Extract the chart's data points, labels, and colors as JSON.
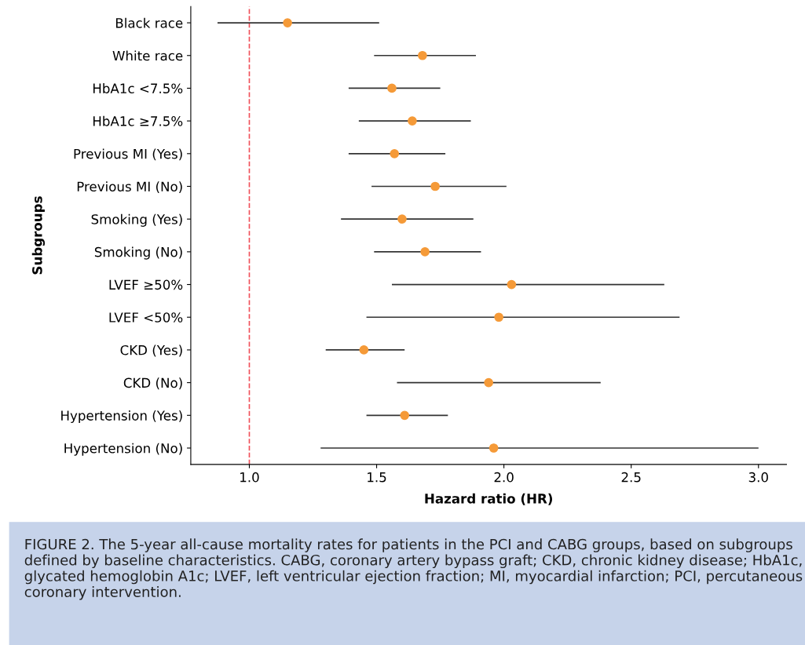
{
  "chart_data": {
    "type": "scatter",
    "orientation": "horizontal",
    "categories": [
      "Black race",
      "White race",
      "HbA1c <7.5%",
      "HbA1c ≥7.5%",
      "Previous MI (Yes)",
      "Previous MI (No)",
      "Smoking (Yes)",
      "Smoking (No)",
      "LVEF ≥50%",
      "LVEF <50%",
      "CKD (Yes)",
      "CKD (No)",
      "Hypertension (Yes)",
      "Hypertension (No)"
    ],
    "values": [
      1.15,
      1.68,
      1.56,
      1.64,
      1.57,
      1.73,
      1.6,
      1.69,
      2.03,
      1.98,
      1.45,
      1.94,
      1.61,
      1.96
    ],
    "errors": [
      [
        0.875,
        1.51
      ],
      [
        1.49,
        1.89
      ],
      [
        1.39,
        1.75
      ],
      [
        1.43,
        1.87
      ],
      [
        1.39,
        1.77
      ],
      [
        1.48,
        2.01
      ],
      [
        1.36,
        1.88
      ],
      [
        1.49,
        1.91
      ],
      [
        1.56,
        2.63
      ],
      [
        1.46,
        2.69
      ],
      [
        1.3,
        1.61
      ],
      [
        1.58,
        2.38
      ],
      [
        1.46,
        1.78
      ],
      [
        1.28,
        3.0
      ]
    ],
    "color": "#f59a38",
    "marker": "circle",
    "xlim": [
      0.77,
      3.11
    ],
    "xticks": [
      {
        "value": 1,
        "label": "1.0"
      },
      {
        "value": 1.5,
        "label": "1.5"
      },
      {
        "value": 2,
        "label": "2.0"
      },
      {
        "value": 2.5,
        "label": "2.5"
      },
      {
        "value": 3,
        "label": "3.0"
      }
    ],
    "xlabel": "Hazard ratio (HR)",
    "ylabel": "Subgroups",
    "ref_lines": [
      {
        "axis": "x",
        "value": 1,
        "color": "#f0505a",
        "line_style": "dashed"
      }
    ],
    "grid": false,
    "legend": false,
    "annotations": [
      "FIGURE 2. The 5-year all-cause mortality rates for patients in the PCI and CABG groups, based on subgroups defined by baseline characteristics. CABG, coronary artery bypass graft; CKD, chronic kidney disease; HbA1c, glycated hemoglobin A1c; LVEF, left ventricular ejection fraction; MI, myocardial infarction; PCI, percutaneous coronary intervention."
    ]
  }
}
